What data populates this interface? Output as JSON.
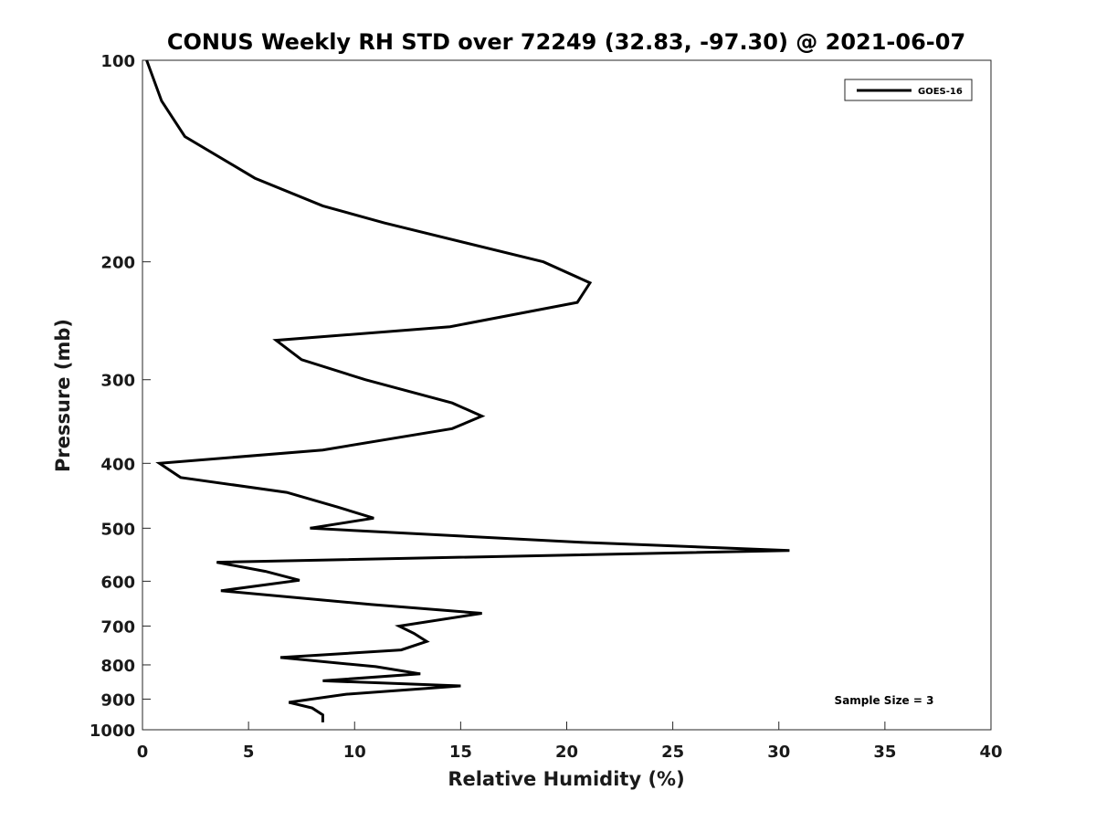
{
  "chart_data": {
    "type": "line",
    "title": "CONUS Weekly RH STD over 72249 (32.83, -97.30) @ 2021-06-07",
    "xlabel": "Relative Humidity (%)",
    "ylabel": "Pressure (mb)",
    "xlim": [
      0,
      40
    ],
    "ylim": [
      100,
      1000
    ],
    "y_scale": "log",
    "y_reversed": true,
    "x_ticks": [
      0,
      5,
      10,
      15,
      20,
      25,
      30,
      35,
      40
    ],
    "y_ticks": [
      100,
      200,
      300,
      400,
      500,
      600,
      700,
      800,
      900,
      1000
    ],
    "legend": {
      "position": "top-right",
      "entries": [
        "GOES-16"
      ]
    },
    "annotation": "Sample Size = 3",
    "grid": false,
    "series": [
      {
        "name": "GOES-16",
        "color": "#000000",
        "points": [
          [
            0.2,
            100
          ],
          [
            0.9,
            115
          ],
          [
            2.0,
            130
          ],
          [
            5.3,
            150
          ],
          [
            8.5,
            165
          ],
          [
            11.4,
            175
          ],
          [
            18.9,
            200
          ],
          [
            21.1,
            215
          ],
          [
            20.5,
            230
          ],
          [
            14.5,
            250
          ],
          [
            6.3,
            262
          ],
          [
            7.5,
            280
          ],
          [
            10.5,
            300
          ],
          [
            14.6,
            325
          ],
          [
            16.0,
            340
          ],
          [
            14.6,
            355
          ],
          [
            8.5,
            382
          ],
          [
            0.8,
            400
          ],
          [
            1.8,
            420
          ],
          [
            6.8,
            442
          ],
          [
            9.2,
            465
          ],
          [
            10.9,
            483
          ],
          [
            7.9,
            500
          ],
          [
            20.8,
            525
          ],
          [
            30.5,
            540
          ],
          [
            3.5,
            562
          ],
          [
            5.8,
            580
          ],
          [
            7.4,
            598
          ],
          [
            3.7,
            620
          ],
          [
            10.8,
            650
          ],
          [
            16.0,
            670
          ],
          [
            12.1,
            700
          ],
          [
            12.8,
            718
          ],
          [
            13.4,
            738
          ],
          [
            12.2,
            760
          ],
          [
            6.5,
            780
          ],
          [
            11.0,
            805
          ],
          [
            13.1,
            825
          ],
          [
            8.5,
            845
          ],
          [
            15.0,
            860
          ],
          [
            9.6,
            885
          ],
          [
            6.9,
            910
          ],
          [
            8.0,
            928
          ],
          [
            8.5,
            950
          ],
          [
            8.5,
            975
          ]
        ]
      }
    ]
  }
}
